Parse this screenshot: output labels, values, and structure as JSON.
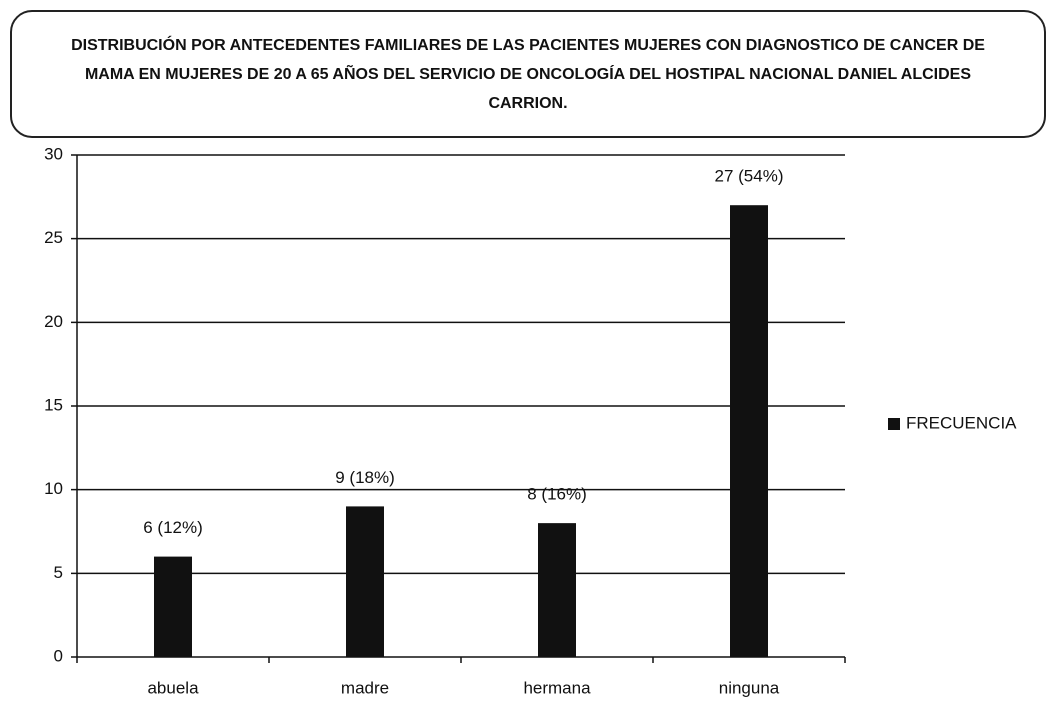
{
  "chart_data": {
    "type": "bar",
    "title": "DISTRIBUCIÓN POR ANTECEDENTES FAMILIARES DE LAS PACIENTES MUJERES CON DIAGNOSTICO DE CANCER DE MAMA EN MUJERES DE 20 A 65 AÑOS DEL SERVICIO DE ONCOLOGÍA DEL HOSTIPAL NACIONAL DANIEL ALCIDES CARRION.",
    "categories": [
      "abuela",
      "madre",
      "hermana",
      "ninguna"
    ],
    "series": [
      {
        "name": "FRECUENCIA",
        "color": "#111111",
        "values": [
          6,
          9,
          8,
          27
        ],
        "value_labels": [
          "6 (12%)",
          "9 (18%)",
          "8 (16%)",
          "27 (54%)"
        ]
      }
    ],
    "ylim": [
      0,
      30
    ],
    "yticks": [
      0,
      5,
      10,
      15,
      20,
      25,
      30
    ],
    "grid": true,
    "legend": "right"
  }
}
